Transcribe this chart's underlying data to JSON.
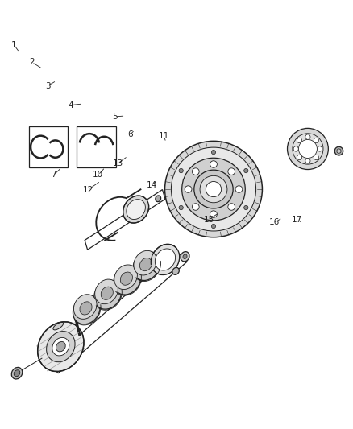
{
  "bg": "#ffffff",
  "lc": "#222222",
  "lw": 0.9,
  "figsize": [
    4.38,
    5.33
  ],
  "dpi": 100,
  "labels": {
    "1": [
      0.048,
      0.895,
      0.062,
      0.882
    ],
    "2": [
      0.09,
      0.86,
      0.107,
      0.848
    ],
    "3": [
      0.13,
      0.8,
      0.148,
      0.812
    ],
    "4": [
      0.205,
      0.75,
      0.23,
      0.758
    ],
    "5": [
      0.33,
      0.73,
      0.35,
      0.73
    ],
    "6": [
      0.37,
      0.685,
      0.38,
      0.695
    ],
    "7": [
      0.155,
      0.59,
      0.175,
      0.6
    ],
    "10": [
      0.278,
      0.59,
      0.298,
      0.6
    ],
    "11": [
      0.468,
      0.68,
      0.47,
      0.668
    ],
    "12": [
      0.255,
      0.56,
      0.295,
      0.58
    ],
    "13": [
      0.34,
      0.62,
      0.37,
      0.638
    ],
    "14": [
      0.43,
      0.568,
      0.448,
      0.58
    ],
    "15": [
      0.59,
      0.48,
      0.62,
      0.5
    ],
    "16": [
      0.775,
      0.48,
      0.8,
      0.49
    ],
    "17": [
      0.84,
      0.49,
      0.855,
      0.48
    ]
  }
}
